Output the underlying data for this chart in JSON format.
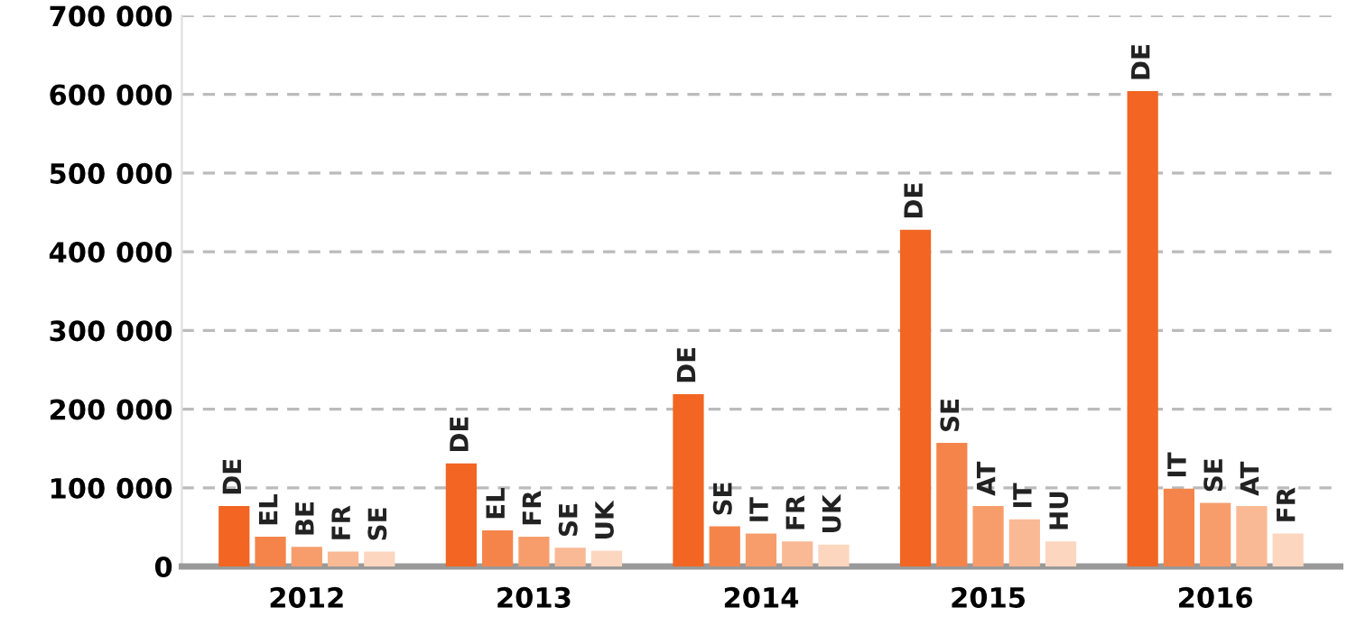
{
  "chart_data": {
    "type": "bar",
    "categories": [
      "2012",
      "2013",
      "2014",
      "2015",
      "2016"
    ],
    "series": [
      {
        "color": "#f26522",
        "values": [
          77000,
          131000,
          219000,
          428000,
          604000
        ],
        "value_labels": [
          "DE",
          "DE",
          "DE",
          "DE",
          "DE"
        ]
      },
      {
        "color": "#f5844a",
        "values": [
          38000,
          46000,
          51000,
          157000,
          99000
        ],
        "value_labels": [
          "EL",
          "EL",
          "SE",
          "SE",
          "IT"
        ]
      },
      {
        "color": "#f79d6c",
        "values": [
          25000,
          38000,
          42000,
          77000,
          81000
        ],
        "value_labels": [
          "BE",
          "FR",
          "IT",
          "AT",
          "SE"
        ]
      },
      {
        "color": "#f9b994",
        "values": [
          19000,
          24000,
          32000,
          60000,
          77000
        ],
        "value_labels": [
          "FR",
          "SE",
          "FR",
          "IT",
          "AT"
        ]
      },
      {
        "color": "#fdd6bf",
        "values": [
          19000,
          20000,
          28000,
          32000,
          42000
        ],
        "value_labels": [
          "SE",
          "UK",
          "UK",
          "HU",
          "FR"
        ]
      }
    ],
    "ylim": [
      0,
      700000
    ],
    "yticks": [
      {
        "value": 0,
        "label": "0"
      },
      {
        "value": 100000,
        "label": "100 000"
      },
      {
        "value": 200000,
        "label": "200 000"
      },
      {
        "value": 300000,
        "label": "300 000"
      },
      {
        "value": 400000,
        "label": "400 000"
      },
      {
        "value": 500000,
        "label": "500 000"
      },
      {
        "value": 600000,
        "label": "600 000"
      },
      {
        "value": 700000,
        "label": "700 000"
      }
    ],
    "grid": "y",
    "legend": false
  }
}
